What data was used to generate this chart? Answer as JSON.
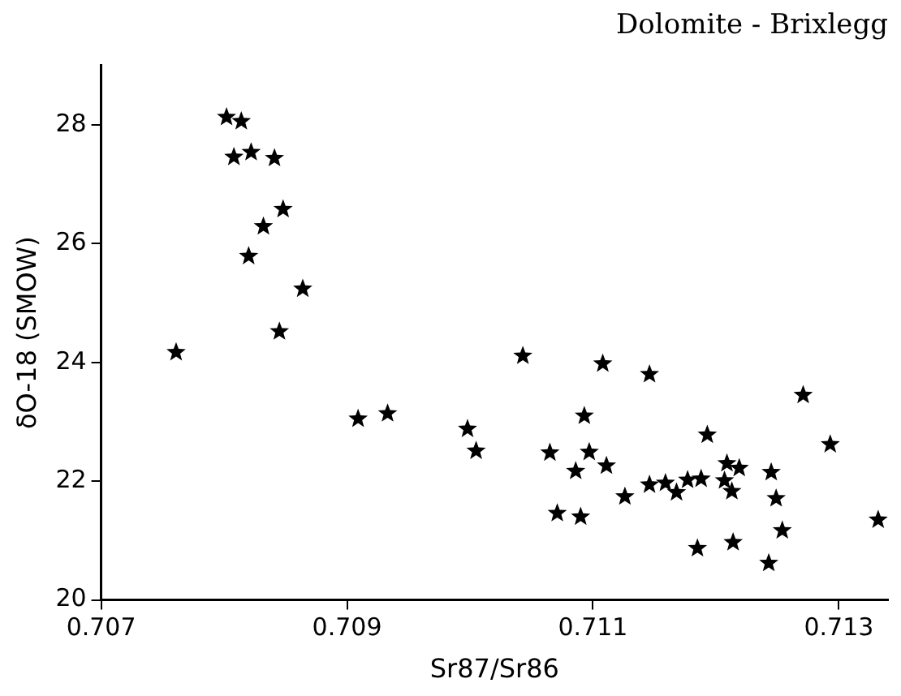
{
  "chart_data": {
    "type": "scatter",
    "title": "Dolomite - Brixlegg",
    "xlabel": "Sr87/Sr86",
    "ylabel": "δO-18 (SMOW)",
    "x": [
      0.70802,
      0.70814,
      0.70808,
      0.70822,
      0.70841,
      0.70848,
      0.70832,
      0.7082,
      0.70864,
      0.70845,
      0.70761,
      0.70909,
      0.70933,
      0.70998,
      0.71005,
      0.71043,
      0.71065,
      0.71071,
      0.71086,
      0.7109,
      0.71093,
      0.71097,
      0.71108,
      0.71111,
      0.71126,
      0.71146,
      0.71146,
      0.71159,
      0.71168,
      0.71177,
      0.71188,
      0.71185,
      0.71193,
      0.71207,
      0.71209,
      0.71213,
      0.71214,
      0.71219,
      0.71243,
      0.71245,
      0.71249,
      0.71254,
      0.71271,
      0.71293,
      0.71332
    ],
    "series": [
      {
        "color": "#000000",
        "values": [
          28.13,
          28.06,
          27.46,
          27.54,
          27.44,
          26.58,
          26.29,
          25.79,
          25.24,
          24.52,
          24.17,
          23.05,
          23.14,
          22.88,
          22.51,
          24.11,
          22.48,
          21.46,
          22.17,
          21.4,
          23.1,
          22.49,
          23.98,
          22.26,
          21.74,
          21.94,
          23.8,
          21.97,
          21.81,
          22.02,
          22.04,
          20.87,
          22.78,
          22.01,
          22.3,
          21.83,
          20.97,
          22.22,
          20.62,
          22.15,
          21.71,
          21.17,
          23.45,
          22.62,
          21.35
        ]
      }
    ],
    "xlim": [
      0.707,
      0.7134
    ],
    "xticks": [
      0.707,
      0.709,
      0.711,
      0.713
    ],
    "ylim": [
      20,
      29
    ],
    "yticks": [
      20,
      22,
      24,
      26,
      28
    ],
    "grid": false,
    "legend": false,
    "marker": "star"
  }
}
